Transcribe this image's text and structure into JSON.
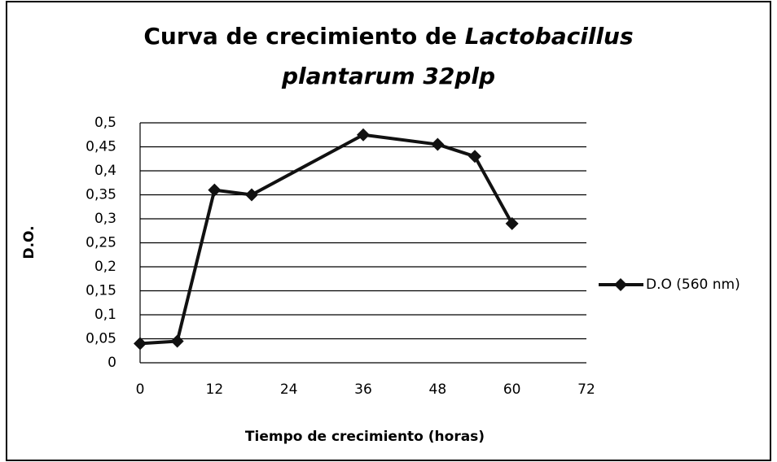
{
  "chart_data": {
    "type": "line",
    "title": [
      "Curva de crecimiento de",
      "Lactobacillus",
      "plantarum 32plp"
    ],
    "xlabel": "Tiempo de crecimiento (horas)",
    "ylabel": "D.O.",
    "x": [
      0,
      6,
      12,
      18,
      36,
      48,
      54,
      60
    ],
    "series": [
      {
        "name": "D.O (560 nm)",
        "color": "#111111",
        "values": [
          0.04,
          0.045,
          0.36,
          0.35,
          0.475,
          0.455,
          0.43,
          0.29
        ]
      }
    ],
    "xlim": [
      0,
      72
    ],
    "xticks": [
      0,
      12,
      24,
      36,
      48,
      60,
      72
    ],
    "ylim": [
      0,
      0.5
    ],
    "yticks": [
      0,
      {
        "value": 0.05,
        "label": "0,05"
      },
      {
        "value": 0.1,
        "label": "0,1"
      },
      {
        "value": 0.15,
        "label": "0,15"
      },
      {
        "value": 0.2,
        "label": "0,2"
      },
      {
        "value": 0.25,
        "label": "0,25"
      },
      {
        "value": 0.3,
        "label": "0,3"
      },
      {
        "value": 0.35,
        "label": "0,35"
      },
      {
        "value": 0.4,
        "label": "0,4"
      },
      {
        "value": 0.45,
        "label": "0,45"
      },
      {
        "value": 0.5,
        "label": "0,5"
      }
    ],
    "grid": true,
    "legend": "right"
  }
}
